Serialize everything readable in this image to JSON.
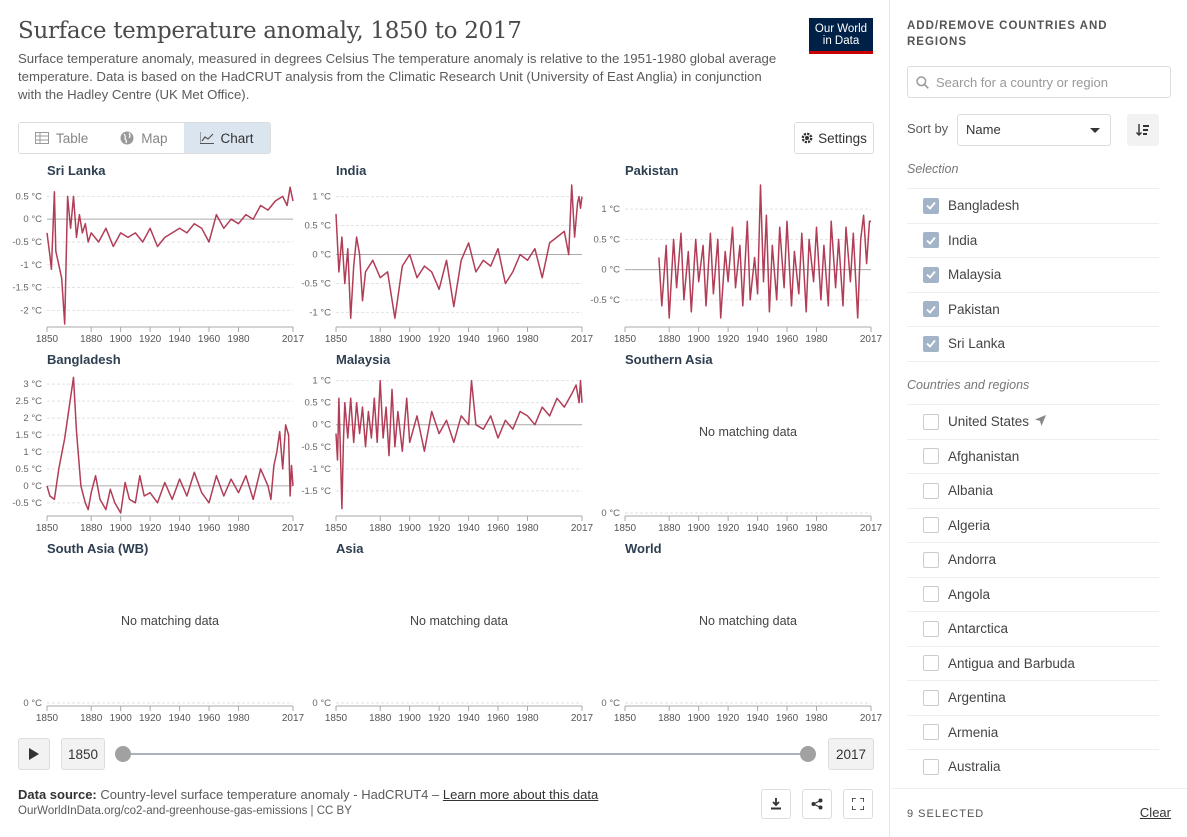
{
  "header": {
    "title": "Surface temperature anomaly, 1850 to 2017",
    "subtitle": "Surface temperature anomaly, measured in degrees Celsius The temperature anomaly is relative to the 1951-1980 global average temperature. Data is based on the HadCRUT analysis from the Climatic Research Unit (University of East Anglia) in conjunction with the Hadley Centre (UK Met Office).",
    "logo_line1": "Our World",
    "logo_line2": "in Data"
  },
  "tabs": [
    {
      "label": "Table",
      "icon": "table-icon"
    },
    {
      "label": "Map",
      "icon": "globe-icon"
    },
    {
      "label": "Chart",
      "icon": "line-chart-icon",
      "active": true
    }
  ],
  "settings_label": "Settings",
  "colors": {
    "series": "#b13d56",
    "selected": "#dbe5f0",
    "accent": "#002147"
  },
  "no_data_text": "No matching data",
  "chart_data": [
    {
      "type": "line",
      "title": "Sri Lanka",
      "x_ticks": [
        "1850",
        "1880",
        "1900",
        "1920",
        "1940",
        "1960",
        "1980",
        "2017"
      ],
      "y_ticks": [
        "0.5 °C",
        "0 °C",
        "-0.5 °C",
        "-1 °C",
        "-1.5 °C",
        "-2 °C"
      ],
      "y_values": [
        0.5,
        0,
        -0.5,
        -1,
        -1.5,
        -2
      ],
      "ylim": [
        -2.3,
        0.75
      ],
      "xlim": [
        1850,
        2017
      ],
      "series": [
        {
          "x": [
            1850,
            1852,
            1853,
            1855,
            1856,
            1858,
            1860,
            1862,
            1864,
            1866,
            1868,
            1870,
            1872,
            1874,
            1876,
            1878,
            1880,
            1885,
            1890,
            1895,
            1900,
            1905,
            1910,
            1915,
            1920,
            1925,
            1930,
            1935,
            1940,
            1945,
            1950,
            1955,
            1960,
            1965,
            1970,
            1975,
            1980,
            1985,
            1990,
            1995,
            2000,
            2005,
            2010,
            2013,
            2015,
            2017
          ],
          "y": [
            -0.3,
            -0.8,
            -1.1,
            0.6,
            -0.7,
            -1.0,
            -1.3,
            -2.3,
            0.5,
            -0.2,
            0.5,
            -0.4,
            0.1,
            -0.3,
            -0.1,
            -0.5,
            -0.3,
            -0.5,
            -0.2,
            -0.6,
            -0.3,
            -0.4,
            -0.3,
            -0.5,
            -0.2,
            -0.6,
            -0.4,
            -0.3,
            -0.2,
            -0.3,
            -0.1,
            -0.2,
            -0.5,
            0.1,
            -0.2,
            0.0,
            -0.1,
            0.1,
            0.0,
            0.3,
            0.2,
            0.4,
            0.5,
            0.3,
            0.7,
            0.4
          ]
        }
      ]
    },
    {
      "type": "line",
      "title": "India",
      "x_ticks": [
        "1850",
        "1880",
        "1900",
        "1920",
        "1940",
        "1960",
        "1980",
        "2017"
      ],
      "y_ticks": [
        "1 °C",
        "0.5 °C",
        "0 °C",
        "-0.5 °C",
        "-1 °C"
      ],
      "y_values": [
        1,
        0.5,
        0,
        -0.5,
        -1
      ],
      "ylim": [
        -1.2,
        1.2
      ],
      "xlim": [
        1850,
        2017
      ],
      "series": [
        {
          "x": [
            1850,
            1852,
            1854,
            1856,
            1858,
            1860,
            1862,
            1864,
            1866,
            1868,
            1870,
            1875,
            1880,
            1885,
            1890,
            1895,
            1900,
            1905,
            1910,
            1915,
            1920,
            1925,
            1930,
            1935,
            1940,
            1945,
            1950,
            1955,
            1960,
            1965,
            1970,
            1975,
            1980,
            1985,
            1990,
            1995,
            2000,
            2005,
            2008,
            2010,
            2012,
            2014,
            2015,
            2016,
            2017
          ],
          "y": [
            0.7,
            -0.3,
            0.3,
            -0.5,
            0.1,
            -1.1,
            -0.2,
            0.3,
            0.0,
            -0.8,
            -0.3,
            -0.1,
            -0.4,
            -0.3,
            -1.1,
            -0.2,
            0.0,
            -0.4,
            -0.2,
            -0.3,
            -0.6,
            -0.1,
            -0.9,
            -0.1,
            0.2,
            -0.3,
            -0.1,
            -0.2,
            0.1,
            -0.5,
            -0.3,
            0.0,
            -0.1,
            0.1,
            -0.4,
            0.2,
            0.3,
            0.4,
            0.0,
            1.2,
            0.3,
            0.9,
            1.0,
            0.8,
            1.0
          ]
        }
      ]
    },
    {
      "type": "line",
      "title": "Pakistan",
      "x_ticks": [
        "1850",
        "1880",
        "1900",
        "1920",
        "1940",
        "1960",
        "1980",
        "2017"
      ],
      "y_ticks": [
        "1 °C",
        "0.5 °C",
        "0 °C",
        "-0.5 °C"
      ],
      "y_values": [
        1,
        0.5,
        0,
        -0.5
      ],
      "ylim": [
        -0.9,
        1.4
      ],
      "xlim": [
        1850,
        2017
      ],
      "series": [
        {
          "x": [
            1873,
            1875,
            1878,
            1880,
            1883,
            1885,
            1888,
            1890,
            1893,
            1895,
            1898,
            1900,
            1903,
            1905,
            1908,
            1910,
            1913,
            1915,
            1918,
            1920,
            1923,
            1925,
            1928,
            1930,
            1933,
            1935,
            1938,
            1940,
            1942,
            1944,
            1946,
            1948,
            1950,
            1953,
            1955,
            1958,
            1960,
            1963,
            1965,
            1968,
            1970,
            1973,
            1975,
            1978,
            1980,
            1983,
            1985,
            1988,
            1990,
            1993,
            1995,
            1998,
            2000,
            2003,
            2005,
            2008,
            2010,
            2012,
            2014,
            2016,
            2017
          ],
          "y": [
            0.2,
            -0.6,
            0.4,
            -0.8,
            0.5,
            -0.3,
            0.6,
            -0.5,
            0.3,
            -0.7,
            0.5,
            -0.2,
            0.4,
            -0.6,
            0.6,
            -0.4,
            0.5,
            -0.8,
            0.3,
            -0.2,
            0.7,
            -0.3,
            0.4,
            -0.6,
            0.8,
            -0.5,
            0.2,
            -0.4,
            1.4,
            -0.2,
            0.9,
            -0.7,
            0.4,
            -0.5,
            0.7,
            -0.3,
            0.8,
            -0.6,
            0.3,
            -0.4,
            0.6,
            -0.7,
            0.5,
            -0.2,
            0.7,
            -0.5,
            0.4,
            -0.6,
            0.8,
            -0.3,
            0.5,
            -0.6,
            0.7,
            -0.2,
            0.6,
            -0.8,
            0.5,
            0.9,
            0.1,
            0.8,
            0.8
          ]
        }
      ]
    },
    {
      "type": "line",
      "title": "Bangladesh",
      "x_ticks": [
        "1850",
        "1880",
        "1900",
        "1920",
        "1940",
        "1960",
        "1980",
        "2017"
      ],
      "y_ticks": [
        "3 °C",
        "2.5 °C",
        "2 °C",
        "1.5 °C",
        "1 °C",
        "0.5 °C",
        "0 °C",
        "-0.5 °C"
      ],
      "y_values": [
        3,
        2.5,
        2,
        1.5,
        1,
        0.5,
        0,
        -0.5
      ],
      "ylim": [
        -0.8,
        3.3
      ],
      "xlim": [
        1850,
        2017
      ],
      "series": [
        {
          "x": [
            1850,
            1852,
            1855,
            1858,
            1862,
            1865,
            1868,
            1870,
            1873,
            1876,
            1878,
            1880,
            1883,
            1886,
            1890,
            1893,
            1896,
            1900,
            1903,
            1906,
            1910,
            1913,
            1916,
            1920,
            1925,
            1930,
            1935,
            1940,
            1945,
            1950,
            1955,
            1960,
            1965,
            1970,
            1975,
            1980,
            1985,
            1990,
            1995,
            2000,
            2002,
            2004,
            2006,
            2008,
            2010,
            2012,
            2014,
            2015,
            2016,
            2017
          ],
          "y": [
            0.0,
            -0.3,
            -0.4,
            0.5,
            1.4,
            2.3,
            3.2,
            1.6,
            0.0,
            -0.5,
            -0.7,
            -0.2,
            0.3,
            -0.4,
            -0.7,
            -0.1,
            -0.5,
            -0.8,
            0.1,
            -0.4,
            -0.5,
            0.3,
            -0.3,
            -0.2,
            -0.5,
            0.1,
            -0.4,
            0.2,
            -0.3,
            0.4,
            -0.2,
            -0.5,
            0.3,
            -0.3,
            0.2,
            -0.2,
            0.3,
            -0.4,
            0.5,
            0.0,
            -0.4,
            0.6,
            1.0,
            1.6,
            0.5,
            1.8,
            1.5,
            -0.3,
            0.6,
            0.0
          ]
        }
      ]
    },
    {
      "type": "line",
      "title": "Malaysia",
      "x_ticks": [
        "1850",
        "1880",
        "1900",
        "1920",
        "1940",
        "1960",
        "1980",
        "2017"
      ],
      "y_ticks": [
        "1 °C",
        "0.5 °C",
        "0 °C",
        "-0.5 °C",
        "-1 °C",
        "-1.5 °C"
      ],
      "y_values": [
        1,
        0.5,
        0,
        -0.5,
        -1,
        -1.5
      ],
      "ylim": [
        -2.0,
        1.15
      ],
      "xlim": [
        1850,
        2017
      ],
      "series": [
        {
          "x": [
            1850,
            1851,
            1852,
            1853,
            1854,
            1855,
            1856,
            1858,
            1860,
            1862,
            1864,
            1866,
            1868,
            1870,
            1872,
            1874,
            1876,
            1878,
            1880,
            1882,
            1884,
            1886,
            1888,
            1890,
            1892,
            1895,
            1898,
            1900,
            1905,
            1910,
            1915,
            1920,
            1925,
            1930,
            1935,
            1940,
            1942,
            1945,
            1950,
            1955,
            1960,
            1965,
            1970,
            1975,
            1980,
            1985,
            1990,
            1995,
            2000,
            2005,
            2010,
            2013,
            2015,
            2016,
            2017
          ],
          "y": [
            -0.2,
            -0.8,
            0.6,
            -0.6,
            -1.9,
            -0.4,
            0.5,
            -0.3,
            0.6,
            -0.4,
            0.5,
            -0.2,
            0.4,
            -0.5,
            0.3,
            -0.3,
            0.6,
            -0.4,
            1.0,
            -0.3,
            0.4,
            -0.7,
            0.8,
            -0.5,
            0.3,
            -0.6,
            0.6,
            -0.4,
            0.2,
            -0.6,
            0.3,
            -0.2,
            0.1,
            -0.4,
            0.2,
            0.0,
            1.0,
            0.0,
            -0.1,
            0.2,
            -0.3,
            0.1,
            -0.1,
            0.3,
            0.2,
            0.0,
            0.4,
            0.2,
            0.6,
            0.4,
            0.7,
            0.9,
            0.5,
            1.0,
            0.5
          ]
        }
      ]
    },
    {
      "type": "line",
      "title": "Southern Asia",
      "no_data": true,
      "x_ticks": [
        "1850",
        "1880",
        "1900",
        "1920",
        "1940",
        "1960",
        "1980",
        "2017"
      ],
      "y_ticks": [
        "0 °C"
      ],
      "y_values": [
        0
      ],
      "ylim": [
        0,
        1
      ],
      "xlim": [
        1850,
        2017
      ],
      "series": []
    },
    {
      "type": "line",
      "title": "South Asia (WB)",
      "no_data": true,
      "x_ticks": [
        "1850",
        "1880",
        "1900",
        "1920",
        "1940",
        "1960",
        "1980",
        "2017"
      ],
      "y_ticks": [
        "0 °C"
      ],
      "y_values": [
        0
      ],
      "ylim": [
        0,
        1
      ],
      "xlim": [
        1850,
        2017
      ],
      "series": []
    },
    {
      "type": "line",
      "title": "Asia",
      "no_data": true,
      "x_ticks": [
        "1850",
        "1880",
        "1900",
        "1920",
        "1940",
        "1960",
        "1980",
        "2017"
      ],
      "y_ticks": [
        "0 °C"
      ],
      "y_values": [
        0
      ],
      "ylim": [
        0,
        1
      ],
      "xlim": [
        1850,
        2017
      ],
      "series": []
    },
    {
      "type": "line",
      "title": "World",
      "no_data": true,
      "x_ticks": [
        "1850",
        "1880",
        "1900",
        "1920",
        "1940",
        "1960",
        "1980",
        "2017"
      ],
      "y_ticks": [
        "0 °C"
      ],
      "y_values": [
        0
      ],
      "ylim": [
        0,
        1
      ],
      "xlim": [
        1850,
        2017
      ],
      "series": []
    }
  ],
  "timeline": {
    "start": "1850",
    "end": "2017"
  },
  "footer": {
    "source_label": "Data source:",
    "source_text": "Country-level surface temperature anomaly - HadCRUT4 –",
    "learn_more": "Learn more about this data",
    "url": "OurWorldInData.org/co2-and-greenhouse-gas-emissions | CC BY"
  },
  "sidebar": {
    "title": "Add/remove countries and regions",
    "search_placeholder": "Search for a country or region",
    "sort_label": "Sort by",
    "sort_value": "Name",
    "selection_label": "Selection",
    "selected": [
      "Bangladesh",
      "India",
      "Malaysia",
      "Pakistan",
      "Sri Lanka"
    ],
    "countries_label": "Countries and regions",
    "countries": [
      "United States",
      "Afghanistan",
      "Albania",
      "Algeria",
      "Andorra",
      "Angola",
      "Antarctica",
      "Antigua and Barbuda",
      "Argentina",
      "Armenia",
      "Australia"
    ],
    "selected_count": "9 SELECTED",
    "clear_label": "Clear"
  }
}
